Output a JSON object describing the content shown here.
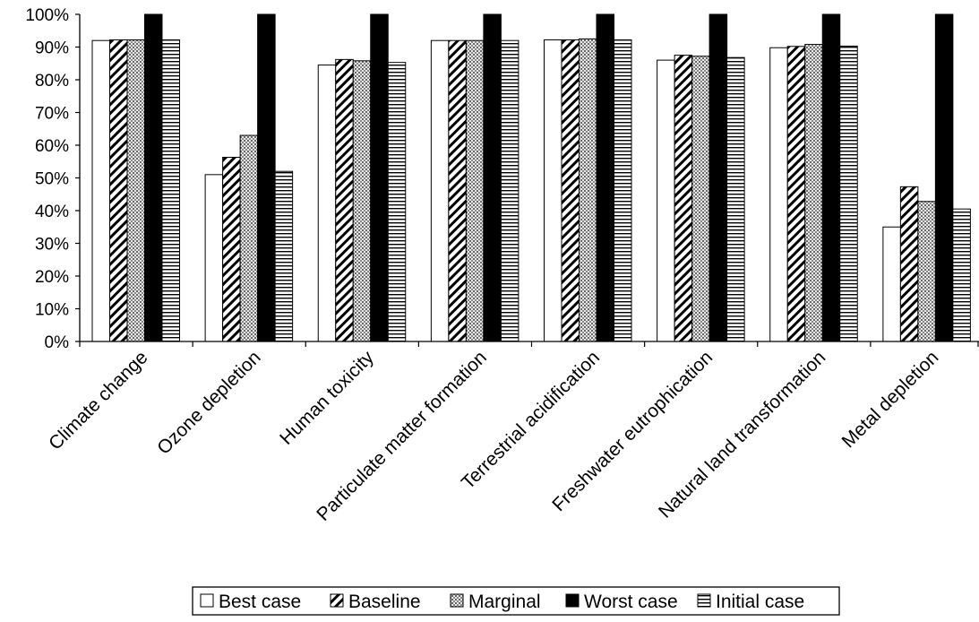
{
  "chart_data": {
    "type": "bar",
    "title": "",
    "xlabel": "",
    "ylabel": "",
    "ylim": [
      0,
      100
    ],
    "y_tick_step": 10,
    "y_tick_format": "percent",
    "grid": false,
    "legend_position": "bottom",
    "categories": [
      "Climate change",
      "Ozone depletion",
      "Human toxicity",
      "Particulate matter formation",
      "Terrestrial acidification",
      "Freshwater eutrophication",
      "Natural land transformation",
      "Metal depletion"
    ],
    "series": [
      {
        "name": "Best case",
        "pattern": "white",
        "values": [
          92,
          51,
          84.5,
          92,
          92.2,
          86,
          89.8,
          35
        ]
      },
      {
        "name": "Baseline",
        "pattern": "diagonal",
        "values": [
          92.2,
          56.3,
          86.2,
          92,
          92.2,
          87.5,
          90.2,
          47.3
        ]
      },
      {
        "name": "Marginal",
        "pattern": "crosshatch",
        "values": [
          92.2,
          63,
          85.8,
          92,
          92.5,
          87.2,
          90.8,
          42.8
        ]
      },
      {
        "name": "Worst case",
        "pattern": "black",
        "values": [
          100,
          100,
          100,
          100,
          100,
          100,
          100,
          100
        ]
      },
      {
        "name": "Initial case",
        "pattern": "horizontal",
        "values": [
          92.2,
          52,
          85.3,
          92,
          92.2,
          86.8,
          90.3,
          40.5
        ]
      }
    ]
  }
}
